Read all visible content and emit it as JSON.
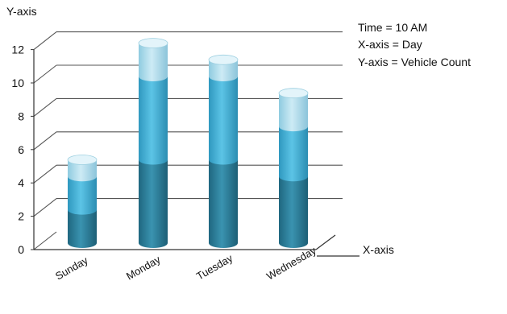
{
  "chart_data": {
    "type": "bar",
    "style": "3d-stacked-cylinder",
    "ylabel": "Y-axis",
    "xlabel": "X-axis",
    "categories": [
      "Sunday",
      "Monday",
      "Tuesday",
      "Wednesday"
    ],
    "series": [
      {
        "values": [
          2,
          5,
          5,
          4
        ]
      },
      {
        "values": [
          2,
          5,
          5,
          3
        ]
      },
      {
        "values": [
          1,
          2,
          1,
          2
        ]
      }
    ],
    "totals": [
      5,
      12,
      11,
      9
    ],
    "ylim": [
      0,
      12
    ],
    "yticks": [
      0,
      2,
      4,
      6,
      8,
      10,
      12
    ],
    "grid": true,
    "annotations": [
      "Time = 10 AM",
      "X-axis = Day",
      "Y-axis = Vehicle Count"
    ],
    "colors": [
      "#2f7f9a",
      "#4ab3d6",
      "#b7e2f0"
    ],
    "tick_label_rotation": -30
  }
}
